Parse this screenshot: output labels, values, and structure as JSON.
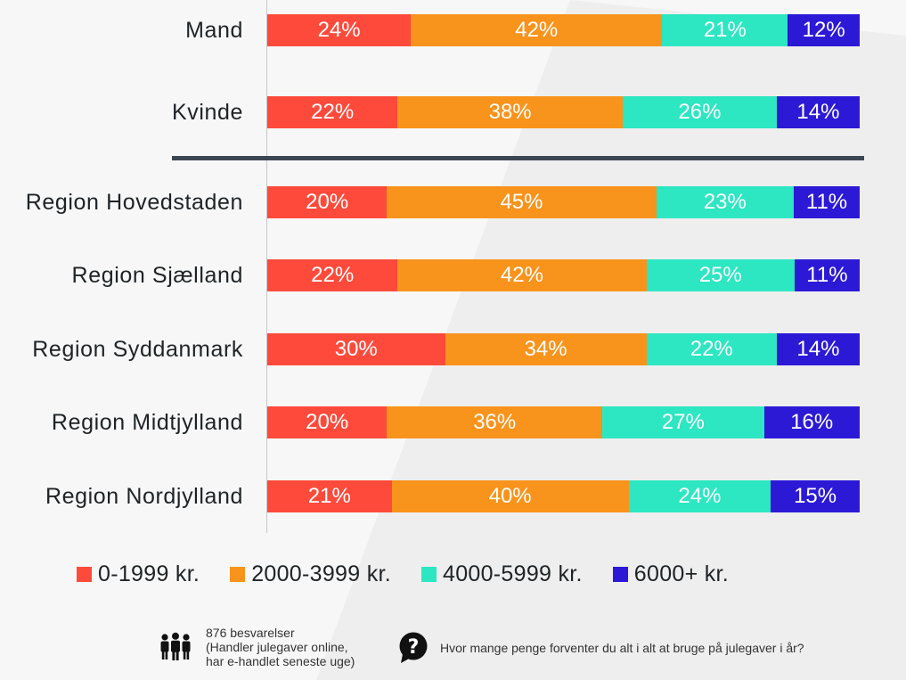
{
  "chart_data": {
    "type": "bar",
    "orientation": "horizontal",
    "stacked": true,
    "normalized": true,
    "categories": [
      "Mand",
      "Kvinde",
      "Region Hovedstaden",
      "Region Sjælland",
      "Region Syddanmark",
      "Region Midtjylland",
      "Region Nordjylland"
    ],
    "series": [
      {
        "name": "0-1999 kr.",
        "color": "#fe4a3b",
        "values": [
          24,
          22,
          20,
          22,
          30,
          20,
          21
        ]
      },
      {
        "name": "2000-3999 kr.",
        "color": "#f8931c",
        "values": [
          42,
          38,
          45,
          42,
          34,
          36,
          40
        ]
      },
      {
        "name": "4000-5999 kr.",
        "color": "#2de6c2",
        "values": [
          21,
          26,
          23,
          25,
          22,
          27,
          24
        ]
      },
      {
        "name": "6000+ kr.",
        "color": "#2c19d6",
        "values": [
          12,
          14,
          11,
          11,
          14,
          16,
          15
        ]
      }
    ],
    "value_suffix": "%",
    "legend_position": "bottom",
    "grid": false
  },
  "footer": {
    "respondents_line1": "876 besvarelser",
    "respondents_line2": "(Handler julegaver online,",
    "respondents_line3": "har e-handlet seneste uge)",
    "question": "Hvor mange penge forventer du alt i alt at bruge på julegaver i år?",
    "people_icon": "people-icon",
    "question_icon": "question-bubble-icon"
  }
}
